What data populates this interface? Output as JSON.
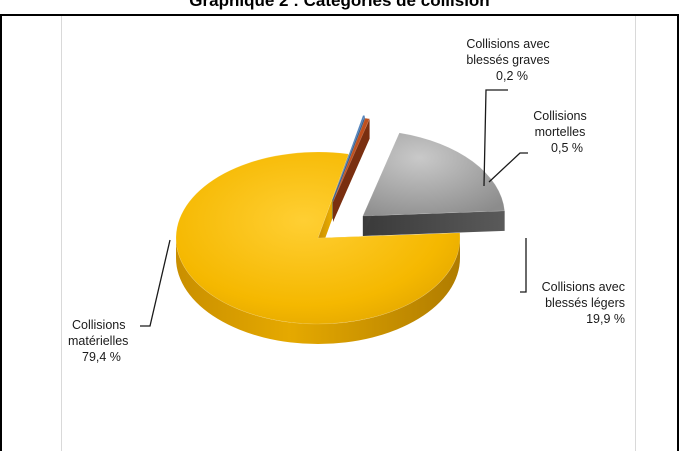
{
  "chart_data": {
    "type": "pie",
    "title": "Graphique 2 : Catégories de collision",
    "slices": [
      {
        "name": "Collisions matérielles",
        "value": 79.4,
        "label_name": [
          "Collisions",
          "matérielles"
        ],
        "label_value": "79,4 %",
        "color": "#f5b800",
        "exploded": false
      },
      {
        "name": "Collisions avec blessés légers",
        "value": 19.9,
        "label_name": [
          "Collisions  avec",
          "blessés légers"
        ],
        "label_value": "19,9 %",
        "color": "#a6a6a6",
        "exploded": true
      },
      {
        "name": "Collisions mortelles",
        "value": 0.5,
        "label_name": [
          "Collisions",
          "mortelles"
        ],
        "label_value": "0,5 %",
        "color": "#c0501e",
        "exploded": true
      },
      {
        "name": "Collisions avec blessés graves",
        "value": 0.2,
        "label_name": [
          "Collisions  avec",
          "blessés graves"
        ],
        "label_value": "0,2 %",
        "color": "#4f81bd",
        "exploded": true
      }
    ],
    "legend": "none"
  }
}
